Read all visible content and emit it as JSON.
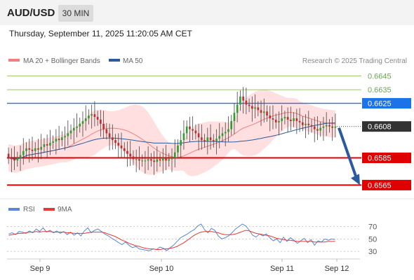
{
  "header": {
    "pair": "AUD/USD",
    "timeframe": "30 MIN"
  },
  "timestamp": "Thursday, September 11, 2025 11:20:05 AM CET",
  "credit": "Research © 2025 Trading Central",
  "colors": {
    "background": "#ffffff",
    "header_bg": "#f3f3f3",
    "bull": "#2e9e2e",
    "bear": "#c32c2c",
    "ma20": "#f08080",
    "bollinger_fill": "#ffd4d4",
    "ma50": "#2b5a9e",
    "resistance": "#1a73e8",
    "support": "#e00000",
    "target_line": "#7cb342",
    "forecast_arrow": "#2b5a9e",
    "rsi": "#5a86d6",
    "rsi_ma": "#e53935"
  },
  "chart_data": [
    {
      "type": "candlestick",
      "title": "",
      "legend": [
        {
          "label": "MA 20 + Bollinger Bands",
          "color": "#f08080"
        },
        {
          "label": "MA 50",
          "color": "#2b5a9e"
        }
      ],
      "legend_position": "top-left",
      "x_ticks": [
        "Sep 9",
        "Sep 10",
        "Sep 11",
        "Sep 12"
      ],
      "ylim": [
        0.6557,
        0.6652
      ],
      "grid": false,
      "current_price": 0.6608,
      "levels": [
        {
          "label": "0.6645",
          "value": 0.6645,
          "kind": "target"
        },
        {
          "label": "0.6635",
          "value": 0.6635,
          "kind": "target"
        },
        {
          "label": "0.6625",
          "value": 0.6625,
          "kind": "resistance"
        },
        {
          "label": "0.6608",
          "value": 0.6608,
          "kind": "last"
        },
        {
          "label": "0.6585",
          "value": 0.6585,
          "kind": "support"
        },
        {
          "label": "0.6565",
          "value": 0.6565,
          "kind": "support"
        }
      ],
      "forecast": {
        "direction": "down",
        "from": 0.6608,
        "to": 0.6565
      },
      "close": [
        0.6585,
        0.6584,
        0.6583,
        0.6585,
        0.6587,
        0.659,
        0.6592,
        0.6591,
        0.659,
        0.6592,
        0.6591,
        0.6593,
        0.6595,
        0.6594,
        0.6596,
        0.6597,
        0.6599,
        0.6598,
        0.66,
        0.6601,
        0.6603,
        0.6605,
        0.6607,
        0.6608,
        0.661,
        0.6612,
        0.6614,
        0.6616,
        0.6617,
        0.6615,
        0.6613,
        0.661,
        0.6606,
        0.6603,
        0.66,
        0.6598,
        0.6596,
        0.6594,
        0.6592,
        0.659,
        0.6588,
        0.6586,
        0.6584,
        0.6584,
        0.6583,
        0.6583,
        0.6583,
        0.6584,
        0.6583,
        0.6582,
        0.6584,
        0.6583,
        0.6585,
        0.6583,
        0.6584,
        0.6585,
        0.6589,
        0.6594,
        0.6598,
        0.6603,
        0.6608,
        0.6606,
        0.6605,
        0.6603,
        0.66,
        0.6598,
        0.6597,
        0.66,
        0.6598,
        0.6597,
        0.6599,
        0.6601,
        0.6603,
        0.6604,
        0.6606,
        0.6612,
        0.6618,
        0.6624,
        0.663,
        0.6627,
        0.6624,
        0.6623,
        0.6621,
        0.6622,
        0.662,
        0.6618,
        0.6619,
        0.6616,
        0.6614,
        0.6613,
        0.6611,
        0.6612,
        0.6614,
        0.6615,
        0.6613,
        0.6612,
        0.6614,
        0.6612,
        0.6611,
        0.6609,
        0.661,
        0.6609,
        0.6608,
        0.6606,
        0.6605,
        0.6607,
        0.6608,
        0.6609,
        0.6608,
        0.6607,
        0.6608
      ]
    },
    {
      "type": "line",
      "title": "",
      "legend": [
        {
          "label": "RSI",
          "color": "#5a86d6"
        },
        {
          "label": "9MA",
          "color": "#e53935"
        }
      ],
      "legend_position": "top-left",
      "ylim": [
        20,
        82
      ],
      "y_ticks": [
        "70",
        "50",
        "30"
      ],
      "series": [
        {
          "name": "RSI",
          "values": [
            58,
            60,
            57,
            62,
            61,
            59,
            63,
            60,
            66,
            62,
            68,
            61,
            64,
            60,
            63,
            59,
            62,
            57,
            61,
            56,
            60,
            55,
            63,
            68,
            60,
            64,
            66,
            62,
            58,
            55,
            51,
            48,
            44,
            41,
            45,
            40,
            36,
            38,
            34,
            33,
            32,
            31,
            34,
            33,
            37,
            35,
            31,
            36,
            40,
            46,
            52,
            55,
            58,
            62,
            65,
            71,
            74,
            65,
            60,
            67,
            64,
            55,
            50,
            52,
            55,
            60,
            66,
            70,
            74,
            71,
            64,
            56,
            53,
            58,
            55,
            58,
            52,
            47,
            50,
            44,
            53,
            46,
            52,
            48,
            43,
            47,
            51,
            44,
            49,
            40,
            47,
            45,
            50,
            48,
            50,
            49
          ]
        },
        {
          "name": "9MA",
          "values": [
            56,
            57,
            58,
            59,
            59,
            60,
            61,
            61,
            62,
            61,
            62,
            62,
            62,
            61,
            61,
            61,
            61,
            60,
            60,
            59,
            59,
            59,
            59,
            60,
            61,
            61,
            61,
            61,
            60,
            58,
            56,
            54,
            51,
            48,
            46,
            43,
            41,
            39,
            38,
            36,
            35,
            34,
            34,
            33,
            33,
            34,
            34,
            35,
            36,
            38,
            41,
            44,
            48,
            52,
            56,
            59,
            61,
            62,
            62,
            62,
            61,
            60,
            58,
            57,
            57,
            57,
            58,
            60,
            62,
            64,
            63,
            61,
            59,
            58,
            57,
            56,
            55,
            53,
            51,
            50,
            49,
            48,
            48,
            47,
            46,
            46,
            46,
            46,
            46,
            45,
            45,
            45,
            45,
            46,
            46,
            46
          ]
        }
      ]
    }
  ]
}
